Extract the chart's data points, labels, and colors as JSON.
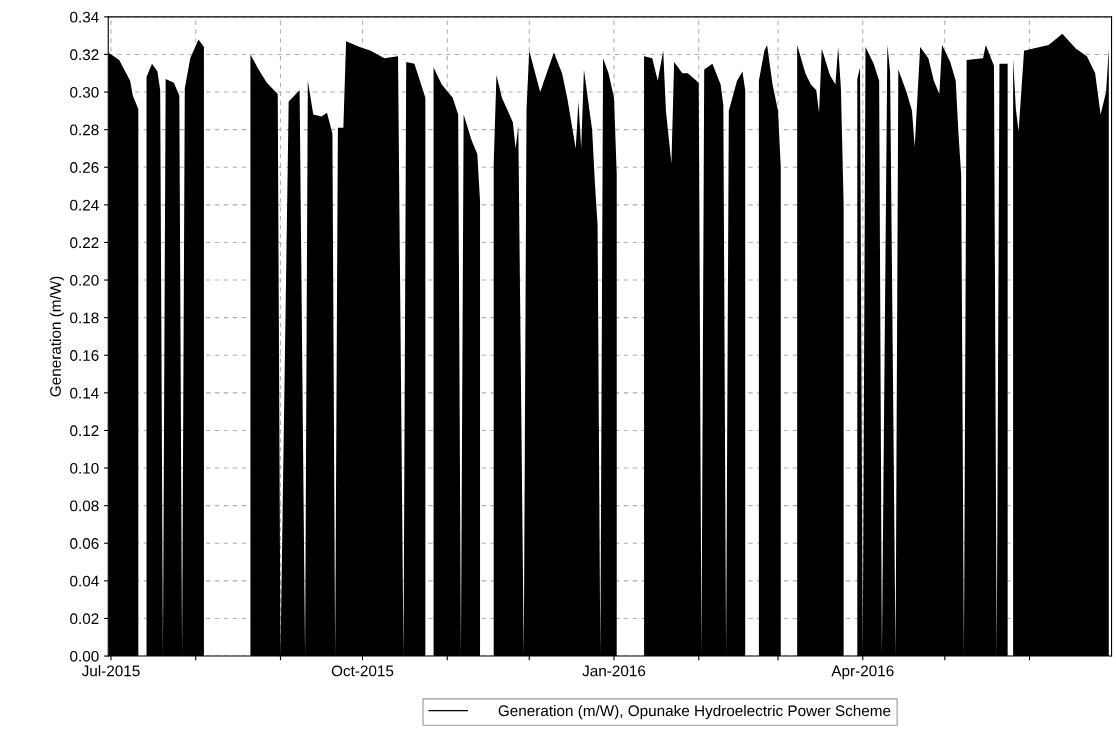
{
  "chart_data": {
    "type": "area",
    "ylabel": "Generation (m/W)",
    "xlim": [
      "2015-06-30",
      "2016-07-01"
    ],
    "ylim": [
      0,
      0.34
    ],
    "xticks": [
      {
        "value": "2015-07-01",
        "label": "Jul-2015"
      },
      {
        "value": "2015-08-01",
        "label": null
      },
      {
        "value": "2015-09-01",
        "label": null
      },
      {
        "value": "2015-10-01",
        "label": "Oct-2015"
      },
      {
        "value": "2015-11-01",
        "label": null
      },
      {
        "value": "2015-12-01",
        "label": null
      },
      {
        "value": "2016-01-01",
        "label": "Jan-2016"
      },
      {
        "value": "2016-02-01",
        "label": null
      },
      {
        "value": "2016-03-01",
        "label": null
      },
      {
        "value": "2016-04-01",
        "label": "Apr-2016"
      },
      {
        "value": "2016-05-01",
        "label": null
      },
      {
        "value": "2016-06-01",
        "label": null
      }
    ],
    "yticks": [
      {
        "value": 0,
        "label": "0.00"
      },
      {
        "value": 0.02,
        "label": "0.02"
      },
      {
        "value": 0.04,
        "label": "0.04"
      },
      {
        "value": 0.06,
        "label": "0.06"
      },
      {
        "value": 0.08,
        "label": "0.08"
      },
      {
        "value": 0.1,
        "label": "0.10"
      },
      {
        "value": 0.12,
        "label": "0.12"
      },
      {
        "value": 0.14,
        "label": "0.14"
      },
      {
        "value": 0.16,
        "label": "0.16"
      },
      {
        "value": 0.18,
        "label": "0.18"
      },
      {
        "value": 0.2,
        "label": "0.20"
      },
      {
        "value": 0.22,
        "label": "0.22"
      },
      {
        "value": 0.24,
        "label": "0.24"
      },
      {
        "value": 0.26,
        "label": "0.26"
      },
      {
        "value": 0.28,
        "label": "0.28"
      },
      {
        "value": 0.3,
        "label": "0.30"
      },
      {
        "value": 0.32,
        "label": "0.32"
      },
      {
        "value": 0.34,
        "label": "0.34"
      }
    ],
    "grid": true,
    "legend": "bottom",
    "line_style": "solid",
    "series": [
      {
        "name": "Generation (m/W), Opunake Hydroelectric Power Scheme",
        "color": "#000000",
        "x": [
          "2015-06-30",
          "2015-07-04",
          "2015-07-08",
          "2015-07-09",
          "2015-07-11",
          "2015-07-12",
          "2015-07-14",
          "2015-07-16",
          "2015-07-18",
          "2015-07-19",
          "2015-07-20",
          "2015-07-21",
          "2015-07-24",
          "2015-07-26",
          "2015-07-27",
          "2015-07-28",
          "2015-07-30",
          "2015-08-02",
          "2015-08-04",
          "2015-08-05",
          "2015-08-21",
          "2015-08-24",
          "2015-08-27",
          "2015-08-31",
          "2015-09-01",
          "2015-09-04",
          "2015-09-08",
          "2015-09-10",
          "2015-09-11",
          "2015-09-13",
          "2015-09-16",
          "2015-09-18",
          "2015-09-20",
          "2015-09-21",
          "2015-09-22",
          "2015-09-24",
          "2015-09-25",
          "2015-09-30",
          "2015-10-04",
          "2015-10-09",
          "2015-10-14",
          "2015-10-16",
          "2015-10-17",
          "2015-10-20",
          "2015-10-24",
          "2015-10-25",
          "2015-10-27",
          "2015-10-30",
          "2015-11-03",
          "2015-11-05",
          "2015-11-06",
          "2015-11-07",
          "2015-11-10",
          "2015-11-12",
          "2015-11-13",
          "2015-11-14",
          "2015-11-18",
          "2015-11-19",
          "2015-11-21",
          "2015-11-25",
          "2015-11-26",
          "2015-11-27",
          "2015-11-29",
          "2015-11-30",
          "2015-12-01",
          "2015-12-05",
          "2015-12-10",
          "2015-12-13",
          "2015-12-15",
          "2015-12-18",
          "2015-12-19",
          "2015-12-20",
          "2015-12-21",
          "2015-12-24",
          "2015-12-25",
          "2015-12-26",
          "2015-12-27",
          "2015-12-28",
          "2015-12-30",
          "2016-01-01",
          "2016-01-02",
          "2016-01-03",
          "2016-01-12",
          "2016-01-15",
          "2016-01-17",
          "2016-01-19",
          "2016-01-20",
          "2016-01-22",
          "2016-01-23",
          "2016-01-26",
          "2016-01-28",
          "2016-02-01",
          "2016-02-02",
          "2016-02-03",
          "2016-02-06",
          "2016-02-09",
          "2016-02-10",
          "2016-02-11",
          "2016-02-12",
          "2016-02-15",
          "2016-02-17",
          "2016-02-18",
          "2016-02-20",
          "2016-02-23",
          "2016-02-25",
          "2016-02-26",
          "2016-02-28",
          "2016-03-01",
          "2016-03-02",
          "2016-03-05",
          "2016-03-08",
          "2016-03-11",
          "2016-03-13",
          "2016-03-15",
          "2016-03-16",
          "2016-03-17",
          "2016-03-20",
          "2016-03-22",
          "2016-03-23",
          "2016-03-24",
          "2016-03-25",
          "2016-03-28",
          "2016-03-30",
          "2016-03-31",
          "2016-04-01",
          "2016-04-02",
          "2016-04-05",
          "2016-04-07",
          "2016-04-08",
          "2016-04-10",
          "2016-04-11",
          "2016-04-13",
          "2016-04-14",
          "2016-04-17",
          "2016-04-19",
          "2016-04-20",
          "2016-04-22",
          "2016-04-25",
          "2016-04-27",
          "2016-04-29",
          "2016-04-30",
          "2016-05-03",
          "2016-05-05",
          "2016-05-06",
          "2016-05-07",
          "2016-05-08",
          "2016-05-09",
          "2016-05-15",
          "2016-05-16",
          "2016-05-19",
          "2016-05-20",
          "2016-05-21",
          "2016-05-24",
          "2016-05-25",
          "2016-05-26",
          "2016-05-27",
          "2016-05-28",
          "2016-05-30",
          "2016-06-02",
          "2016-06-08",
          "2016-06-13",
          "2016-06-18",
          "2016-06-22",
          "2016-06-25",
          "2016-06-27",
          "2016-06-29",
          "2016-06-30"
        ],
        "values": [
          0.321,
          0.317,
          0.306,
          0.298,
          0.291,
          null,
          0.308,
          0.315,
          0.311,
          0.301,
          0,
          0.307,
          0.305,
          0.298,
          0,
          0.302,
          0.318,
          0.328,
          0.324,
          null,
          0.32,
          0.312,
          0.305,
          0.299,
          0,
          0.295,
          0.301,
          0,
          0.306,
          0.288,
          0.287,
          0.289,
          0.278,
          0,
          0.281,
          0.281,
          0.327,
          0.324,
          0.322,
          0.318,
          0.319,
          0,
          0.316,
          0.315,
          0.297,
          null,
          0.313,
          0.304,
          0.297,
          0.288,
          0,
          0.288,
          0.274,
          0.267,
          0.242,
          null,
          0.262,
          0.309,
          0.297,
          0.284,
          0.27,
          0.282,
          0,
          0.291,
          0.322,
          0.3,
          0.321,
          0.31,
          0.296,
          0.27,
          0.295,
          0.27,
          0.312,
          0.28,
          0.252,
          0.229,
          0,
          0.318,
          0.31,
          0.297,
          0.256,
          null,
          0.319,
          0.318,
          0.306,
          0.322,
          0.29,
          0.262,
          0.316,
          0.31,
          0.31,
          0.305,
          0,
          0.312,
          0.315,
          0.304,
          0.293,
          0,
          0.29,
          0.306,
          0.311,
          0.301,
          null,
          0.306,
          0.322,
          0.325,
          0.304,
          0.29,
          0.26,
          null,
          0.325,
          0.31,
          0.304,
          0.301,
          0.289,
          0.323,
          0.309,
          0.304,
          0.324,
          0.302,
          0.24,
          null,
          0.307,
          0.313,
          0,
          0.324,
          0.315,
          0.306,
          0,
          0.325,
          0.311,
          0,
          0.312,
          0.3,
          0.29,
          0.271,
          0.324,
          0.318,
          0.306,
          0.299,
          0.325,
          0.316,
          0.306,
          0.278,
          0.256,
          0,
          0.317,
          0.318,
          0.325,
          0.314,
          0,
          0.315,
          0.315,
          null,
          0.318,
          0.291,
          0.279,
          0.322,
          0.323,
          0.325,
          0.331,
          0.323,
          0.319,
          0.31,
          0.288,
          0.3,
          0.323
        ]
      }
    ]
  }
}
